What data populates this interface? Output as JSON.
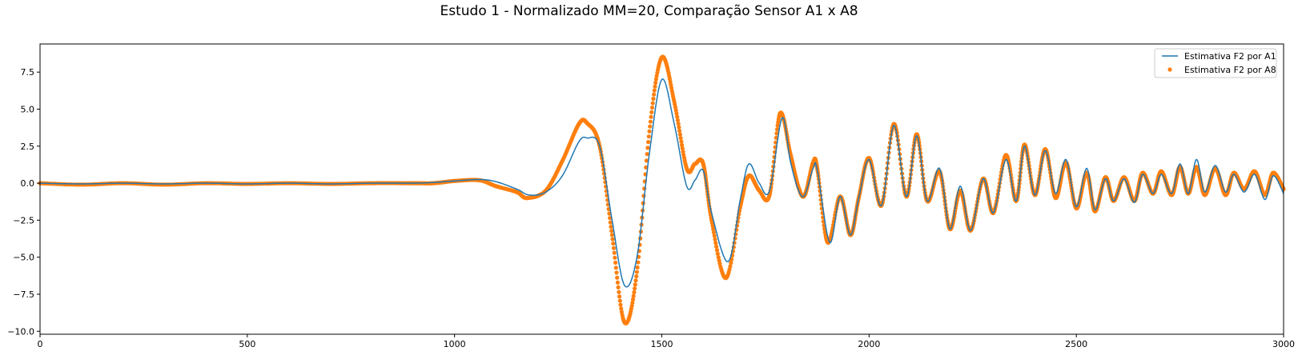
{
  "chart_data": {
    "type": "line",
    "title": "Estudo 1 - Normalizado MM=20, Comparação Sensor A1 x A8",
    "xlabel": "",
    "ylabel": "",
    "xlim": [
      0,
      3000
    ],
    "ylim": [
      -10.2,
      9.4
    ],
    "x_ticks": [
      0,
      500,
      1000,
      1500,
      2000,
      2500,
      3000
    ],
    "x_tick_labels": [
      "0",
      "500",
      "1000",
      "1500",
      "2000",
      "2500",
      "3000"
    ],
    "y_ticks": [
      -10.0,
      -7.5,
      -5.0,
      -2.5,
      0.0,
      2.5,
      5.0,
      7.5
    ],
    "y_tick_labels": [
      "−10.0",
      "−7.5",
      "−5.0",
      "−2.5",
      "0.0",
      "2.5",
      "5.0",
      "7.5"
    ],
    "grid": false,
    "legend_position": "upper right",
    "series": [
      {
        "name": "Estimativa F2 por A1",
        "style": "line",
        "color": "#1f77b4",
        "points": [
          [
            0,
            0
          ],
          [
            100,
            -0.05
          ],
          [
            200,
            0
          ],
          [
            300,
            -0.05
          ],
          [
            400,
            0
          ],
          [
            500,
            -0.05
          ],
          [
            600,
            0
          ],
          [
            700,
            -0.05
          ],
          [
            800,
            0
          ],
          [
            900,
            0
          ],
          [
            950,
            0.05
          ],
          [
            1000,
            0.15
          ],
          [
            1060,
            0.25
          ],
          [
            1100,
            0.1
          ],
          [
            1150,
            -0.4
          ],
          [
            1180,
            -0.8
          ],
          [
            1220,
            -0.6
          ],
          [
            1260,
            0.5
          ],
          [
            1300,
            2.8
          ],
          [
            1320,
            3.05
          ],
          [
            1350,
            2.5
          ],
          [
            1380,
            -2.5
          ],
          [
            1410,
            -6.9
          ],
          [
            1440,
            -5.0
          ],
          [
            1470,
            2.0
          ],
          [
            1500,
            7.0
          ],
          [
            1530,
            4.0
          ],
          [
            1560,
            -0.2
          ],
          [
            1580,
            0.2
          ],
          [
            1600,
            0.85
          ],
          [
            1620,
            -2.0
          ],
          [
            1660,
            -5.3
          ],
          [
            1690,
            -1.0
          ],
          [
            1710,
            1.3
          ],
          [
            1735,
            0.0
          ],
          [
            1760,
            -0.5
          ],
          [
            1790,
            4.4
          ],
          [
            1810,
            1.5
          ],
          [
            1830,
            -0.5
          ],
          [
            1845,
            -0.8
          ],
          [
            1865,
            1.0
          ],
          [
            1875,
            0.9
          ],
          [
            1905,
            -4.0
          ],
          [
            1930,
            -0.9
          ],
          [
            1955,
            -3.5
          ],
          [
            1975,
            -1.0
          ],
          [
            2000,
            1.6
          ],
          [
            2030,
            -1.5
          ],
          [
            2060,
            3.9
          ],
          [
            2090,
            -0.9
          ],
          [
            2115,
            3.2
          ],
          [
            2140,
            -1.2
          ],
          [
            2170,
            1.0
          ],
          [
            2195,
            -3.1
          ],
          [
            2220,
            -0.2
          ],
          [
            2245,
            -3.2
          ],
          [
            2275,
            0.3
          ],
          [
            2300,
            -2.0
          ],
          [
            2330,
            1.6
          ],
          [
            2355,
            -1.2
          ],
          [
            2375,
            2.5
          ],
          [
            2400,
            -0.8
          ],
          [
            2425,
            2.2
          ],
          [
            2450,
            -0.7
          ],
          [
            2475,
            1.6
          ],
          [
            2500,
            -1.6
          ],
          [
            2525,
            1.0
          ],
          [
            2545,
            -1.8
          ],
          [
            2570,
            0.3
          ],
          [
            2590,
            -1.2
          ],
          [
            2615,
            0.3
          ],
          [
            2640,
            -1.3
          ],
          [
            2660,
            0.6
          ],
          [
            2685,
            -0.7
          ],
          [
            2705,
            0.6
          ],
          [
            2730,
            -0.7
          ],
          [
            2750,
            1.3
          ],
          [
            2770,
            -0.7
          ],
          [
            2790,
            1.6
          ],
          [
            2810,
            -0.6
          ],
          [
            2835,
            1.2
          ],
          [
            2860,
            -0.6
          ],
          [
            2880,
            0.6
          ],
          [
            2905,
            -0.6
          ],
          [
            2930,
            0.6
          ],
          [
            2955,
            -1.1
          ],
          [
            2975,
            0.5
          ],
          [
            3000,
            -0.7
          ]
        ]
      },
      {
        "name": "Estimativa F2 por A8",
        "style": "markers",
        "color": "#ff7f0e",
        "points": [
          [
            0,
            0
          ],
          [
            100,
            -0.1
          ],
          [
            200,
            0
          ],
          [
            300,
            -0.1
          ],
          [
            400,
            0
          ],
          [
            500,
            -0.05
          ],
          [
            600,
            0
          ],
          [
            700,
            -0.05
          ],
          [
            800,
            0
          ],
          [
            900,
            0
          ],
          [
            950,
            0
          ],
          [
            1000,
            0.15
          ],
          [
            1060,
            0.2
          ],
          [
            1100,
            -0.2
          ],
          [
            1150,
            -0.6
          ],
          [
            1175,
            -1.0
          ],
          [
            1220,
            -0.5
          ],
          [
            1260,
            1.5
          ],
          [
            1300,
            4.0
          ],
          [
            1320,
            4.05
          ],
          [
            1350,
            2.5
          ],
          [
            1380,
            -3.5
          ],
          [
            1410,
            -9.4
          ],
          [
            1440,
            -6.0
          ],
          [
            1470,
            3.5
          ],
          [
            1500,
            8.5
          ],
          [
            1530,
            5.5
          ],
          [
            1560,
            1.0
          ],
          [
            1580,
            1.3
          ],
          [
            1600,
            1.3
          ],
          [
            1620,
            -2.5
          ],
          [
            1655,
            -6.4
          ],
          [
            1690,
            -1.5
          ],
          [
            1710,
            0.5
          ],
          [
            1735,
            -0.5
          ],
          [
            1760,
            -0.8
          ],
          [
            1785,
            4.7
          ],
          [
            1810,
            2.0
          ],
          [
            1830,
            -0.3
          ],
          [
            1845,
            -0.8
          ],
          [
            1865,
            1.4
          ],
          [
            1875,
            1.0
          ],
          [
            1900,
            -4.0
          ],
          [
            1930,
            -0.9
          ],
          [
            1955,
            -3.5
          ],
          [
            1975,
            -1.0
          ],
          [
            2000,
            1.7
          ],
          [
            2030,
            -1.5
          ],
          [
            2060,
            4.0
          ],
          [
            2090,
            -0.9
          ],
          [
            2115,
            3.3
          ],
          [
            2140,
            -1.2
          ],
          [
            2170,
            0.8
          ],
          [
            2195,
            -3.1
          ],
          [
            2220,
            -0.5
          ],
          [
            2245,
            -3.2
          ],
          [
            2275,
            0.3
          ],
          [
            2300,
            -2.0
          ],
          [
            2330,
            1.9
          ],
          [
            2355,
            -1.2
          ],
          [
            2375,
            2.6
          ],
          [
            2400,
            -0.8
          ],
          [
            2425,
            2.3
          ],
          [
            2450,
            -1.0
          ],
          [
            2475,
            1.4
          ],
          [
            2500,
            -1.7
          ],
          [
            2525,
            0.7
          ],
          [
            2545,
            -1.9
          ],
          [
            2570,
            0.4
          ],
          [
            2590,
            -1.2
          ],
          [
            2615,
            0.4
          ],
          [
            2640,
            -1.2
          ],
          [
            2660,
            0.7
          ],
          [
            2685,
            -0.7
          ],
          [
            2705,
            0.8
          ],
          [
            2730,
            -0.8
          ],
          [
            2750,
            1.1
          ],
          [
            2770,
            -0.7
          ],
          [
            2790,
            1.1
          ],
          [
            2810,
            -0.8
          ],
          [
            2835,
            1.0
          ],
          [
            2860,
            -0.8
          ],
          [
            2880,
            0.7
          ],
          [
            2905,
            -0.4
          ],
          [
            2930,
            0.8
          ],
          [
            2955,
            -0.8
          ],
          [
            2975,
            0.7
          ],
          [
            3000,
            -0.4
          ]
        ]
      }
    ]
  }
}
